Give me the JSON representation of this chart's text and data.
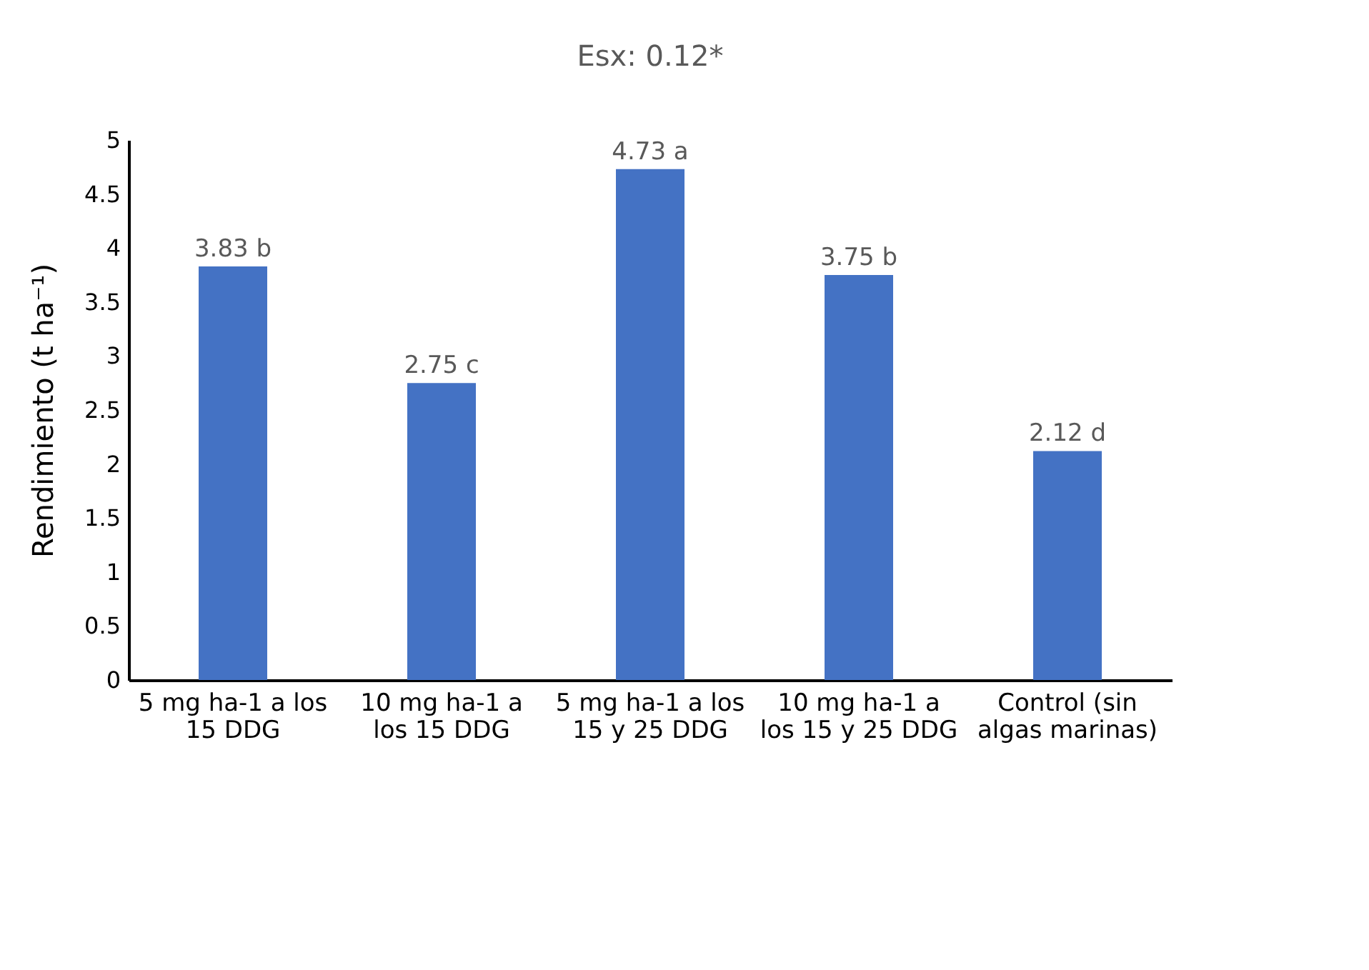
{
  "chart_data": {
    "type": "bar",
    "title": "Esx: 0.12*",
    "ylabel": "Rendimiento (t ha⁻¹)",
    "categories": [
      "5 mg ha-1 a los 15 DDG",
      "10 mg ha-1 a los 15 DDG",
      "5 mg ha-1 a los 15 y 25 DDG",
      "10 mg ha-1 a los 15 y 25 DDG",
      "Control (sin algas marinas)"
    ],
    "values": [
      3.83,
      2.75,
      4.73,
      3.75,
      2.12
    ],
    "value_labels": [
      "3.83 b",
      "2.75 c",
      "4.73 a",
      "3.75 b",
      "2.12 d"
    ],
    "color": "#4472c4",
    "ylim": [
      0,
      5
    ],
    "yticks": [
      0,
      0.5,
      1,
      1.5,
      2,
      2.5,
      3,
      3.5,
      4,
      4.5,
      5
    ],
    "grid": false
  }
}
